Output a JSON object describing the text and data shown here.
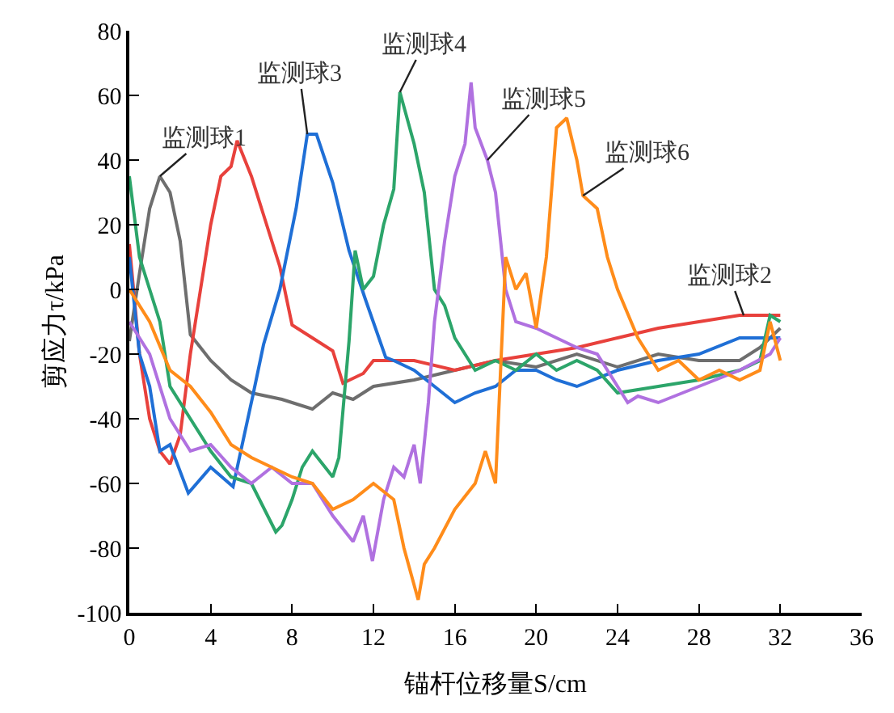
{
  "chart_data": {
    "type": "line",
    "xlabel": "锚杆位移量S/cm",
    "ylabel": "剪应力τ/kPa",
    "xlim": [
      0,
      36
    ],
    "xticks": [
      0,
      4,
      8,
      12,
      16,
      20,
      24,
      28,
      32,
      36
    ],
    "ylim": [
      -100,
      80
    ],
    "yticks": [
      -100,
      -80,
      -60,
      -40,
      -20,
      0,
      20,
      40,
      60,
      80
    ],
    "legend": false,
    "marker": "none",
    "line_style": "solid",
    "series": [
      {
        "color": "#6e6e6e",
        "x": [
          0,
          0.5,
          1,
          1.5,
          2,
          2.5,
          3,
          4,
          5,
          6,
          7.5,
          9,
          10,
          11,
          12,
          14,
          16,
          18,
          20,
          22,
          24,
          26,
          28,
          30,
          31,
          32
        ],
        "values": [
          -16,
          5,
          25,
          35,
          30,
          15,
          -14,
          -22,
          -28,
          -32,
          -34,
          -37,
          -32,
          -34,
          -30,
          -28,
          -25,
          -22,
          -24,
          -20,
          -24,
          -20,
          -22,
          -22,
          -18,
          -12
        ]
      },
      {
        "color": "#e8413c",
        "x": [
          0,
          0.5,
          1,
          1.5,
          2,
          2.5,
          3,
          3.5,
          4,
          4.5,
          5,
          5.3,
          6,
          6.5,
          7.4,
          8,
          9,
          10,
          10.5,
          11.5,
          12,
          14,
          16,
          18,
          20,
          22,
          24,
          26,
          28,
          30,
          32
        ],
        "values": [
          14,
          -20,
          -40,
          -50,
          -54,
          -45,
          -20,
          0,
          20,
          35,
          38,
          46,
          35,
          25,
          7,
          -11,
          -15,
          -19,
          -29,
          -26,
          -22,
          -22,
          -25,
          -22,
          -20,
          -18,
          -15,
          -12,
          -10,
          -8,
          -8
        ]
      },
      {
        "color": "#1f6fd6",
        "x": [
          0,
          0.5,
          1,
          1.5,
          2,
          2.9,
          4,
          5.1,
          6.1,
          6.6,
          7.4,
          8.2,
          8.75,
          9.2,
          10,
          10.8,
          11.6,
          12.6,
          13,
          14,
          15,
          16,
          17,
          18,
          19,
          20,
          21,
          22,
          24,
          26,
          28,
          30,
          32
        ],
        "values": [
          10,
          -20,
          -30,
          -50,
          -48,
          -63,
          -55,
          -61,
          -32,
          -17,
          0,
          25,
          48,
          48,
          33,
          12,
          -3,
          -21,
          -22,
          -25,
          -30,
          -35,
          -32,
          -30,
          -25,
          -25,
          -28,
          -30,
          -25,
          -22,
          -20,
          -15,
          -15
        ]
      },
      {
        "color": "#2ca56a",
        "x": [
          0,
          0.5,
          1,
          1.5,
          2,
          3,
          4,
          5,
          6,
          7.2,
          7.5,
          8,
          8.5,
          9,
          10,
          10.3,
          10.8,
          11.1,
          11.5,
          12,
          12.5,
          13,
          13.3,
          14,
          14.5,
          15,
          15.5,
          16,
          17,
          18,
          19,
          20,
          21,
          22,
          23,
          24,
          26,
          28,
          30,
          31,
          31.5,
          32
        ],
        "values": [
          35,
          10,
          0,
          -10,
          -30,
          -40,
          -50,
          -58,
          -60,
          -75,
          -73,
          -65,
          -55,
          -50,
          -58,
          -52,
          -16,
          12,
          0,
          4,
          20,
          31,
          61,
          45,
          30,
          0,
          -5,
          -15,
          -25,
          -22,
          -25,
          -20,
          -25,
          -22,
          -25,
          -32,
          -30,
          -28,
          -25,
          -22,
          -8,
          -10
        ]
      },
      {
        "color": "#b071e0",
        "x": [
          0,
          1,
          2,
          3,
          4,
          5,
          6,
          7,
          8,
          9,
          10,
          11,
          11.5,
          11.95,
          12.5,
          13,
          13.5,
          14,
          14.3,
          14.7,
          15,
          15.5,
          16,
          16.5,
          16.8,
          17,
          17.6,
          18,
          18.5,
          19,
          20,
          21,
          22,
          23,
          24,
          24.5,
          25,
          26,
          28,
          30,
          31.5,
          32
        ],
        "values": [
          -10,
          -20,
          -40,
          -50,
          -48,
          -55,
          -60,
          -55,
          -60,
          -60,
          -70,
          -78,
          -70,
          -84,
          -65,
          -55,
          -58,
          -48,
          -60,
          -35,
          -10,
          15,
          35,
          45,
          64,
          50,
          40,
          30,
          0,
          -10,
          -12,
          -15,
          -18,
          -20,
          -30,
          -35,
          -33,
          -35,
          -30,
          -25,
          -20,
          -15
        ]
      },
      {
        "color": "#ff8c1a",
        "x": [
          0,
          1,
          2,
          3,
          4,
          5,
          6,
          7,
          8,
          9,
          10,
          11,
          12,
          13,
          13.5,
          14.2,
          14.5,
          15,
          16,
          17,
          17.5,
          18,
          18.5,
          19,
          19.5,
          20,
          20.5,
          21,
          21.5,
          22,
          22.3,
          23,
          23.5,
          24,
          25,
          26,
          27,
          28,
          29,
          30,
          31,
          31.5,
          32
        ],
        "values": [
          0,
          -10,
          -25,
          -30,
          -38,
          -48,
          -52,
          -55,
          -58,
          -60,
          -68,
          -65,
          -60,
          -65,
          -80,
          -96,
          -85,
          -80,
          -68,
          -60,
          -50,
          -60,
          10,
          0,
          5,
          -12,
          10,
          50,
          53,
          40,
          29,
          25,
          10,
          0,
          -15,
          -25,
          -22,
          -28,
          -25,
          -28,
          -25,
          -10,
          -22
        ]
      }
    ],
    "annotations": [
      {
        "text": "监测球1",
        "x": 1.5,
        "y": 35
      },
      {
        "text": "监测球3",
        "x": 8.75,
        "y": 48
      },
      {
        "text": "监测球4",
        "x": 13.3,
        "y": 61
      },
      {
        "text": "监测球5",
        "x": 17.6,
        "y": 40
      },
      {
        "text": "监测球6",
        "x": 22.3,
        "y": 29
      },
      {
        "text": "监测球2",
        "x": 30.2,
        "y": -8
      }
    ]
  }
}
